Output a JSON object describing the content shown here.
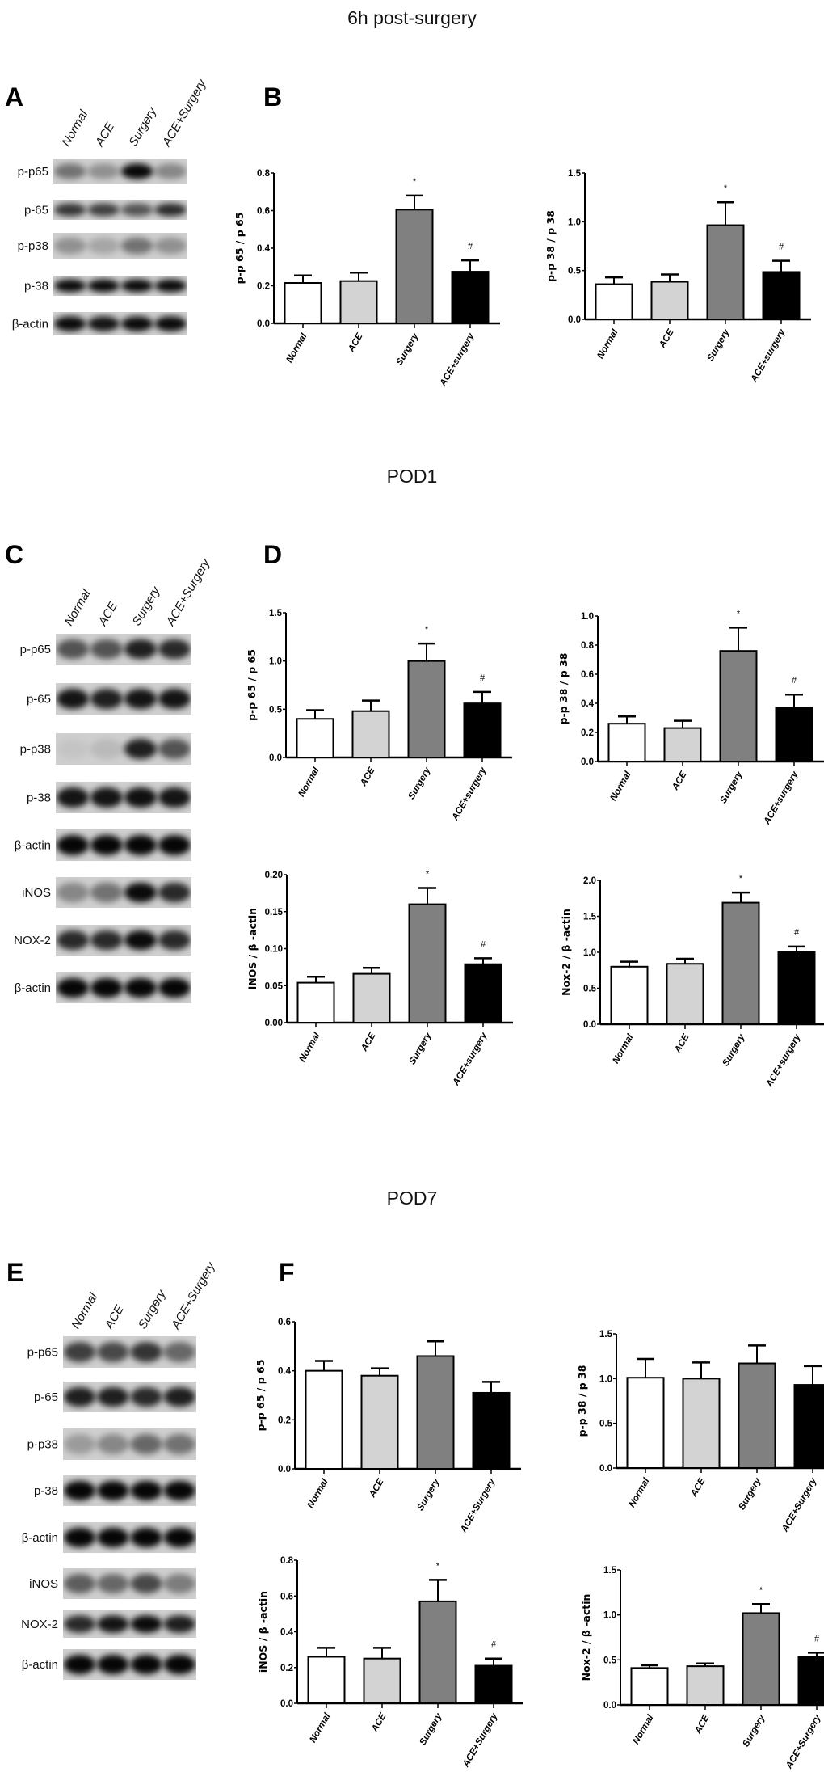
{
  "sections": [
    {
      "title": "6h post-surgery",
      "blot": {
        "panel_letter": "A",
        "lanes": [
          "Normal",
          "ACE",
          "Surgery",
          "ACE+Surgery"
        ],
        "rows": [
          {
            "label": "p-p65",
            "intensity": [
              0.45,
              0.3,
              0.97,
              0.35
            ]
          },
          {
            "label": "p-65",
            "intensity": [
              0.75,
              0.7,
              0.6,
              0.8
            ]
          },
          {
            "label": "p-p38",
            "intensity": [
              0.3,
              0.2,
              0.45,
              0.3
            ]
          },
          {
            "label": "p-38",
            "intensity": [
              0.95,
              0.95,
              0.95,
              0.95
            ]
          },
          {
            "label": "β-actin",
            "intensity": [
              0.95,
              0.9,
              0.95,
              0.95
            ]
          }
        ]
      },
      "chart_panel_letter": "B"
    },
    {
      "title": "POD1",
      "blot": {
        "panel_letter": "C",
        "lanes": [
          "Normal",
          "ACE",
          "Surgery",
          "ACE+Surgery"
        ],
        "rows": [
          {
            "label": "p-p65",
            "intensity": [
              0.6,
              0.6,
              0.85,
              0.8
            ]
          },
          {
            "label": "p-65",
            "intensity": [
              0.9,
              0.85,
              0.9,
              0.9
            ]
          },
          {
            "label": "p-p38",
            "intensity": [
              0.05,
              0.1,
              0.85,
              0.6
            ]
          },
          {
            "label": "p-38",
            "intensity": [
              0.9,
              0.9,
              0.92,
              0.9
            ]
          },
          {
            "label": "β-actin",
            "intensity": [
              0.97,
              0.97,
              0.97,
              0.97
            ]
          },
          {
            "label": "iNOS",
            "intensity": [
              0.35,
              0.45,
              0.95,
              0.8
            ]
          },
          {
            "label": "NOX-2",
            "intensity": [
              0.8,
              0.8,
              0.95,
              0.8
            ]
          },
          {
            "label": "β-actin",
            "intensity": [
              0.97,
              0.97,
              0.97,
              0.97
            ]
          }
        ]
      },
      "chart_panel_letter": "D"
    },
    {
      "title": "POD7",
      "blot": {
        "panel_letter": "E",
        "lanes": [
          "Normal",
          "ACE",
          "Surgery",
          "ACE+Surgery"
        ],
        "rows": [
          {
            "label": "p-p65",
            "intensity": [
              0.7,
              0.65,
              0.75,
              0.5
            ]
          },
          {
            "label": "p-65",
            "intensity": [
              0.85,
              0.85,
              0.8,
              0.85
            ]
          },
          {
            "label": "p-p38",
            "intensity": [
              0.25,
              0.35,
              0.5,
              0.45
            ]
          },
          {
            "label": "p-38",
            "intensity": [
              0.97,
              0.97,
              0.97,
              0.97
            ]
          },
          {
            "label": "β-actin",
            "intensity": [
              0.97,
              0.97,
              0.97,
              0.97
            ]
          },
          {
            "label": "iNOS",
            "intensity": [
              0.55,
              0.5,
              0.65,
              0.4
            ]
          },
          {
            "label": "NOX-2",
            "intensity": [
              0.8,
              0.9,
              0.95,
              0.85
            ]
          },
          {
            "label": "β-actin",
            "intensity": [
              0.97,
              0.97,
              0.97,
              0.97
            ]
          }
        ]
      },
      "chart_panel_letter": "F"
    }
  ],
  "bar_colors": [
    "#ffffff",
    "#d3d3d3",
    "#808080",
    "#000000"
  ],
  "chart_data": [
    {
      "type": "bar",
      "section": "6h post-surgery",
      "ylabel": "p-p 65 / p 65",
      "categories": [
        "Normal",
        "ACE",
        "Surgery",
        "ACE+surgery"
      ],
      "values": [
        0.215,
        0.225,
        0.605,
        0.275
      ],
      "errors": [
        0.04,
        0.045,
        0.075,
        0.06
      ],
      "markers": [
        "",
        "",
        "*",
        "#"
      ],
      "ticks": [
        "0.0",
        "0.2",
        "0.4",
        "0.6",
        "0.8"
      ],
      "ylim": [
        0,
        0.8
      ]
    },
    {
      "type": "bar",
      "section": "6h post-surgery",
      "ylabel": "p-p 38 / p 38",
      "categories": [
        "Normal",
        "ACE",
        "Surgery",
        "ACE+surgery"
      ],
      "values": [
        0.36,
        0.385,
        0.965,
        0.485
      ],
      "errors": [
        0.07,
        0.075,
        0.235,
        0.115
      ],
      "markers": [
        "",
        "",
        "*",
        "#"
      ],
      "ticks": [
        "0.0",
        "0.5",
        "1.0",
        "1.5"
      ],
      "ylim": [
        0,
        1.5
      ]
    },
    {
      "type": "bar",
      "section": "POD1",
      "ylabel": "p-p 65 / p 65",
      "categories": [
        "Normal",
        "ACE",
        "Surgery",
        "ACE+surgery"
      ],
      "values": [
        0.4,
        0.48,
        1.0,
        0.56
      ],
      "errors": [
        0.09,
        0.11,
        0.18,
        0.12
      ],
      "markers": [
        "",
        "",
        "*",
        "#"
      ],
      "ticks": [
        "0.0",
        "0.5",
        "1.0",
        "1.5"
      ],
      "ylim": [
        0,
        1.5
      ]
    },
    {
      "type": "bar",
      "section": "POD1",
      "ylabel": "p-p 38 / p 38",
      "categories": [
        "Normal",
        "ACE",
        "Surgery",
        "ACE+surgery"
      ],
      "values": [
        0.26,
        0.23,
        0.76,
        0.37
      ],
      "errors": [
        0.05,
        0.05,
        0.16,
        0.09
      ],
      "markers": [
        "",
        "",
        "*",
        "#"
      ],
      "ticks": [
        "0.0",
        "0.2",
        "0.4",
        "0.6",
        "0.8",
        "1.0"
      ],
      "ylim": [
        0,
        1.0
      ]
    },
    {
      "type": "bar",
      "section": "POD1",
      "ylabel": "iNOS / β -actin",
      "categories": [
        "Normal",
        "ACE",
        "Surgery",
        "ACE+surgery"
      ],
      "values": [
        0.054,
        0.066,
        0.16,
        0.079
      ],
      "errors": [
        0.008,
        0.008,
        0.022,
        0.008
      ],
      "markers": [
        "",
        "",
        "*",
        "#"
      ],
      "ticks": [
        "0.00",
        "0.05",
        "0.10",
        "0.15",
        "0.20"
      ],
      "ylim": [
        0,
        0.2
      ]
    },
    {
      "type": "bar",
      "section": "POD1",
      "ylabel": "Nox-2 / β -actin",
      "categories": [
        "Normal",
        "ACE",
        "Surgery",
        "ACE+surgery"
      ],
      "values": [
        0.8,
        0.84,
        1.69,
        1.0
      ],
      "errors": [
        0.07,
        0.07,
        0.14,
        0.08
      ],
      "markers": [
        "",
        "",
        "*",
        "#"
      ],
      "ticks": [
        "0.0",
        "0.5",
        "1.0",
        "1.5",
        "2.0"
      ],
      "ylim": [
        0,
        2.0
      ]
    },
    {
      "type": "bar",
      "section": "POD7",
      "ylabel": "p-p 65 / p 65",
      "categories": [
        "Normal",
        "ACE",
        "Surgery",
        "ACE+Surgery"
      ],
      "values": [
        0.4,
        0.38,
        0.46,
        0.31
      ],
      "errors": [
        0.04,
        0.03,
        0.06,
        0.045
      ],
      "markers": [
        "",
        "",
        "",
        ""
      ],
      "ticks": [
        "0.0",
        "0.2",
        "0.4",
        "0.6"
      ],
      "ylim": [
        0,
        0.6
      ]
    },
    {
      "type": "bar",
      "section": "POD7",
      "ylabel": "p-p 38 / p 38",
      "categories": [
        "Normal",
        "ACE",
        "Surgery",
        "ACE+Surgery"
      ],
      "values": [
        1.01,
        1.0,
        1.17,
        0.93
      ],
      "errors": [
        0.21,
        0.18,
        0.2,
        0.21
      ],
      "markers": [
        "",
        "",
        "",
        ""
      ],
      "ticks": [
        "0.0",
        "0.5",
        "1.0",
        "1.5"
      ],
      "ylim": [
        0,
        1.5
      ]
    },
    {
      "type": "bar",
      "section": "POD7",
      "ylabel": "iNOS / β -actin",
      "categories": [
        "Normal",
        "ACE",
        "Surgery",
        "ACE+Surgery"
      ],
      "values": [
        0.26,
        0.25,
        0.57,
        0.21
      ],
      "errors": [
        0.05,
        0.06,
        0.12,
        0.04
      ],
      "markers": [
        "",
        "",
        "*",
        "#"
      ],
      "ticks": [
        "0.0",
        "0.2",
        "0.4",
        "0.6",
        "0.8"
      ],
      "ylim": [
        0,
        0.8
      ]
    },
    {
      "type": "bar",
      "section": "POD7",
      "ylabel": "Nox-2 / β -actin",
      "categories": [
        "Normal",
        "ACE",
        "Surgery",
        "ACE+Surgery"
      ],
      "values": [
        0.41,
        0.43,
        1.02,
        0.53
      ],
      "errors": [
        0.03,
        0.03,
        0.1,
        0.05
      ],
      "markers": [
        "",
        "",
        "*",
        "#"
      ],
      "ticks": [
        "0.0",
        "0.5",
        "1.0",
        "1.5"
      ],
      "ylim": [
        0,
        1.5
      ]
    }
  ]
}
